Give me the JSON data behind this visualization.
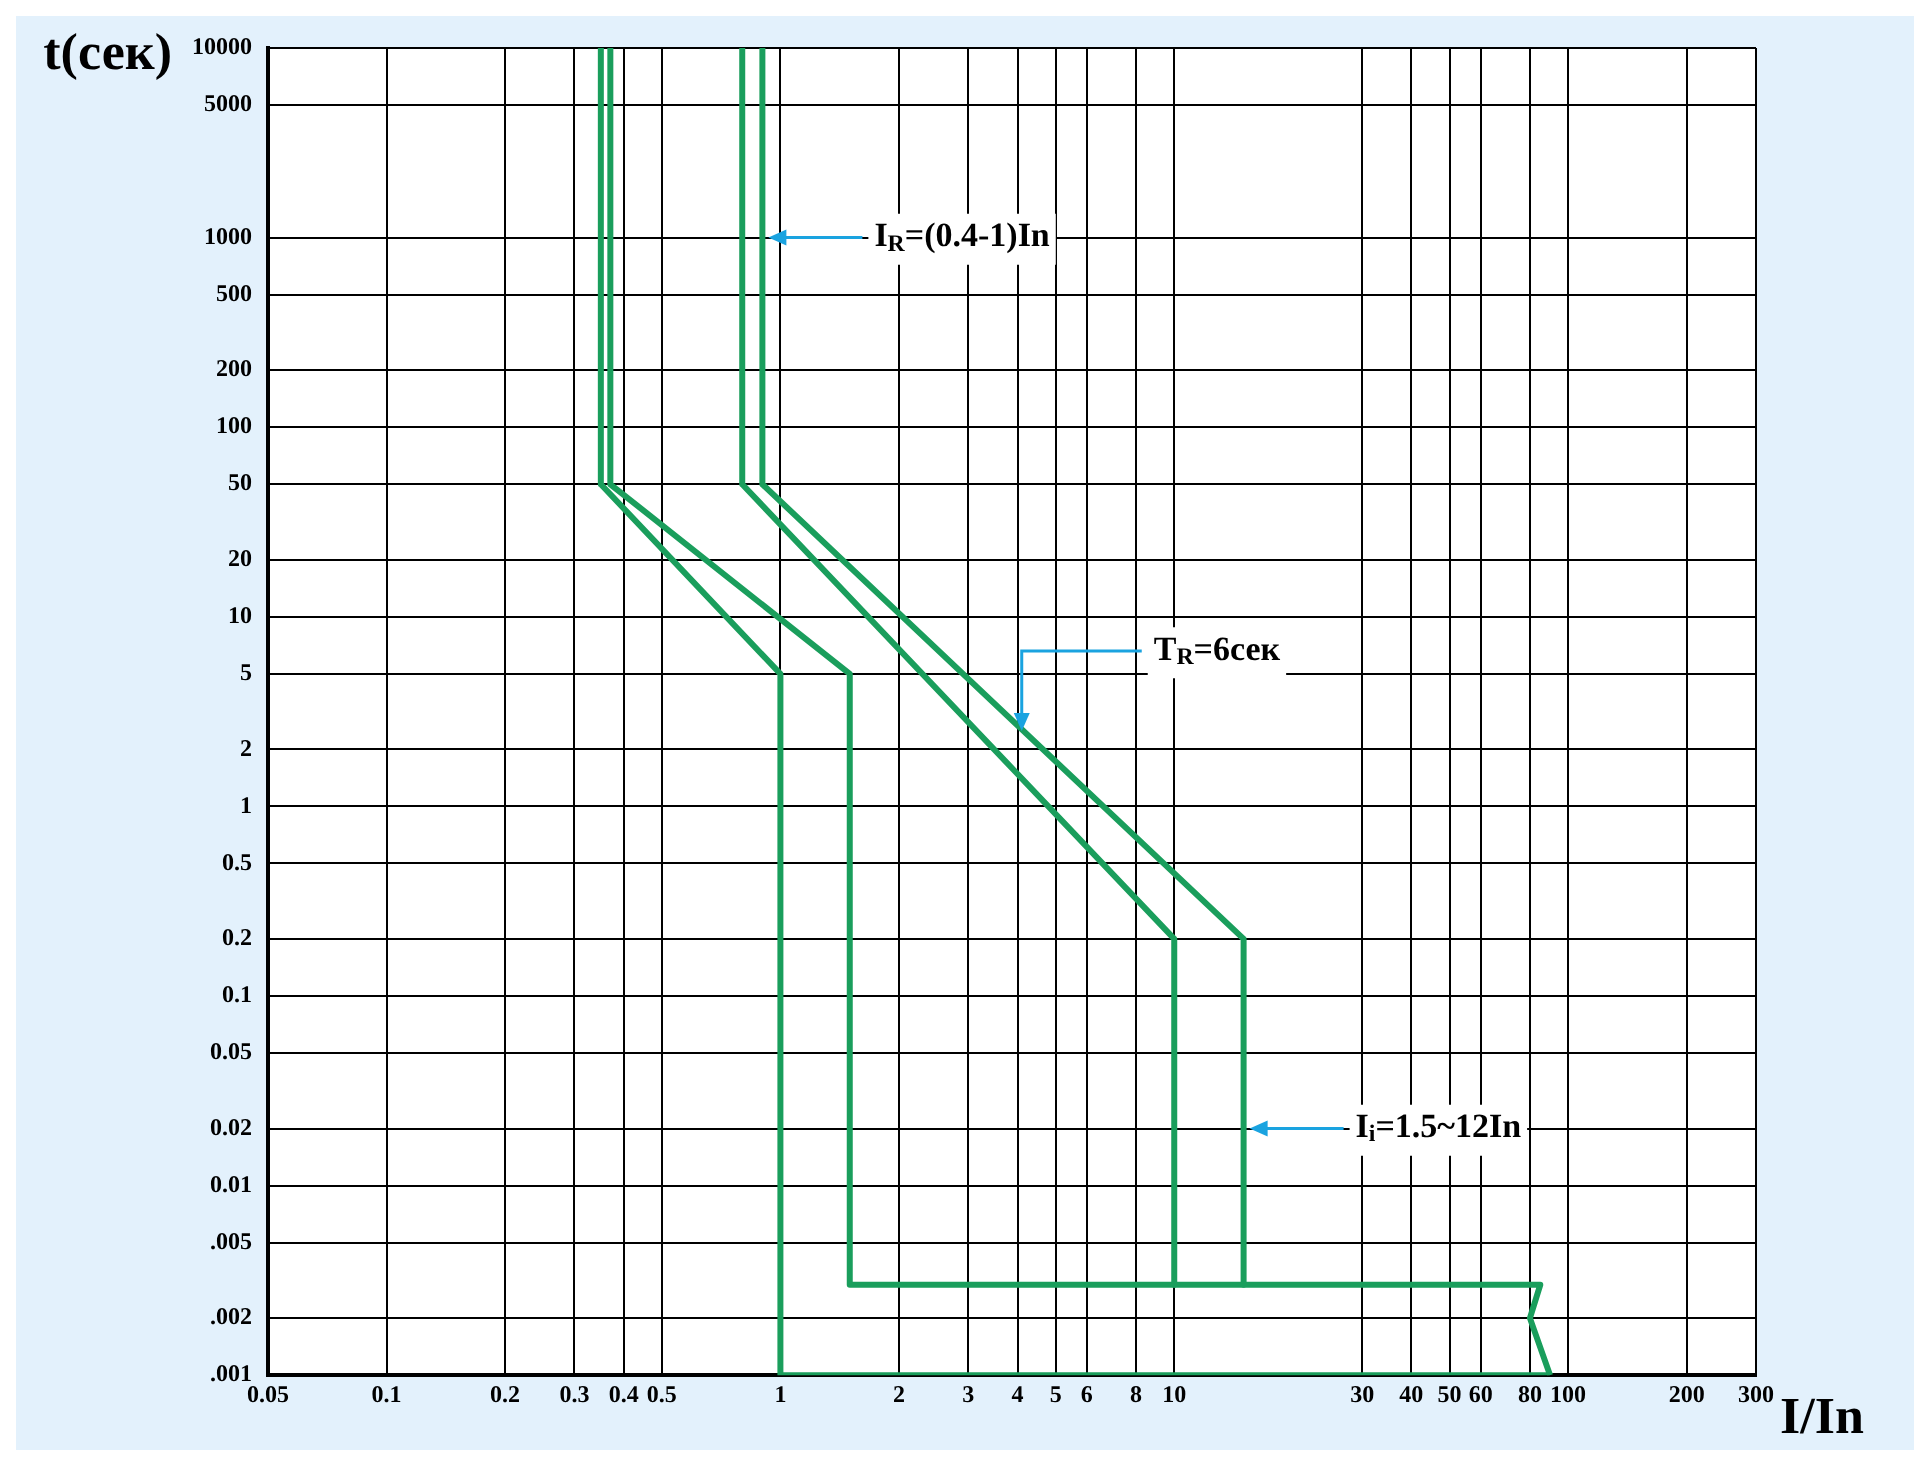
{
  "chart_data": {
    "type": "line",
    "xlabel": "I/In",
    "ylabel": "t(сек)",
    "log": "xy",
    "grid": true,
    "legend": false,
    "marker": "none",
    "line_style": "solid",
    "xlim": [
      0.05,
      300
    ],
    "xticks": [
      0.05,
      0.1,
      0.2,
      0.3,
      0.4,
      0.5,
      1,
      2,
      3,
      4,
      5,
      6,
      8,
      10,
      30,
      40,
      50,
      60,
      80,
      100,
      200,
      300
    ],
    "ylim": [
      0.001,
      10000
    ],
    "yticks": [
      10000,
      5000,
      1000,
      500,
      200,
      100,
      50,
      20,
      10,
      5,
      2,
      1,
      0.5,
      0.2,
      0.1,
      0.05,
      0.02,
      0.01,
      {
        "value": 0.005,
        "label": ".005"
      },
      {
        "value": 0.002,
        "label": ".002"
      },
      {
        "value": 0.001,
        "label": ".001"
      }
    ],
    "series": [
      {
        "color": "#1a9e5c",
        "x": [
          0.35,
          0.35,
          1,
          1,
          90
        ],
        "values": [
          10000,
          50,
          5,
          0.001,
          0.001
        ]
      },
      {
        "color": "#1a9e5c",
        "x": [
          0.37,
          0.37,
          1.5,
          1.5,
          85,
          80,
          90
        ],
        "values": [
          10000,
          50,
          5,
          0.003,
          0.003,
          0.002,
          0.001
        ]
      },
      {
        "color": "#1a9e5c",
        "x": [
          0.8,
          0.8,
          10,
          10
        ],
        "values": [
          10000,
          50,
          0.2,
          0.003
        ]
      },
      {
        "color": "#1a9e5c",
        "x": [
          0.9,
          0.9,
          15,
          15
        ],
        "values": [
          10000,
          50,
          0.2,
          0.003
        ]
      }
    ],
    "annotations": [
      {
        "text": "I$_{R}$=(0.4-1)In",
        "x": 0.9,
        "y": 1000
      },
      {
        "text": "T$_{R}$=6сек",
        "x": 4.1,
        "y": 2.5
      },
      {
        "text": "I$_{i}$=1.5~12In",
        "x": 15,
        "y": 0.02
      }
    ]
  }
}
